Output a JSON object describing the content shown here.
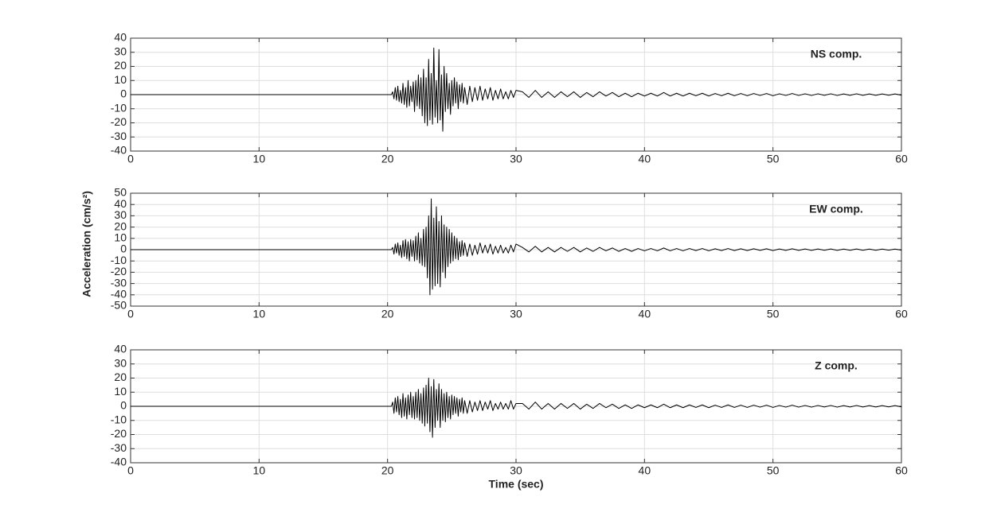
{
  "chart_data": [
    {
      "type": "line",
      "annotation": "NS comp.",
      "color": "#000000",
      "grid": true,
      "xlim": [
        0,
        60
      ],
      "xticks": [
        0,
        10,
        20,
        30,
        40,
        50,
        60
      ],
      "ylim": [
        -40,
        40
      ],
      "yticks": [
        -40,
        -30,
        -20,
        -10,
        0,
        10,
        20,
        30,
        40
      ],
      "x": [
        0,
        20.3,
        20.4,
        20.5,
        20.6,
        20.7,
        20.8,
        20.9,
        21,
        21.1,
        21.2,
        21.3,
        21.4,
        21.5,
        21.6,
        21.7,
        21.8,
        21.9,
        22,
        22.1,
        22.2,
        22.3,
        22.4,
        22.5,
        22.6,
        22.7,
        22.8,
        22.9,
        23,
        23.1,
        23.2,
        23.3,
        23.4,
        23.5,
        23.6,
        23.7,
        23.8,
        23.9,
        24,
        24.1,
        24.2,
        24.3,
        24.4,
        24.5,
        24.6,
        24.7,
        24.8,
        24.9,
        25,
        25.1,
        25.2,
        25.3,
        25.4,
        25.5,
        25.6,
        25.7,
        25.8,
        25.9,
        26,
        26.2,
        26.4,
        26.6,
        26.8,
        27,
        27.2,
        27.4,
        27.6,
        27.8,
        28,
        28.2,
        28.4,
        28.6,
        28.8,
        29,
        29.2,
        29.4,
        29.6,
        29.8,
        30,
        30.5,
        31,
        31.5,
        32,
        32.5,
        33,
        33.5,
        34,
        34.5,
        35,
        35.5,
        36,
        36.5,
        37,
        37.5,
        38,
        38.5,
        39,
        39.5,
        40,
        40.5,
        41,
        41.5,
        42,
        42.5,
        43,
        43.5,
        44,
        44.5,
        45,
        45.5,
        46,
        46.5,
        47,
        47.5,
        48,
        48.5,
        49,
        49.5,
        50,
        50.5,
        51,
        51.5,
        52,
        52.5,
        53,
        53.5,
        54,
        54.5,
        55,
        55.5,
        56,
        56.5,
        57,
        57.5,
        58,
        58.5,
        59,
        59.5,
        60
      ],
      "values": [
        0,
        0,
        2,
        -3,
        5,
        -4,
        6,
        -5,
        3,
        -6,
        8,
        -7,
        5,
        -9,
        10,
        -8,
        6,
        -5,
        9,
        -12,
        10,
        -8,
        14,
        -10,
        12,
        -15,
        18,
        -20,
        12,
        -22,
        25,
        -18,
        15,
        -21,
        33,
        -16,
        10,
        -20,
        32,
        -18,
        14,
        -26,
        20,
        -12,
        15,
        -10,
        8,
        -14,
        10,
        -8,
        12,
        -6,
        9,
        -10,
        7,
        -5,
        8,
        -6,
        5,
        -7,
        6,
        -5,
        5,
        -4,
        6,
        -4,
        4,
        -3,
        5,
        -4,
        3,
        -3,
        4,
        -3,
        2,
        -3,
        3,
        -2,
        3,
        2,
        -2,
        3,
        -2,
        2,
        -2,
        2,
        -1.5,
        2,
        -2,
        1.5,
        -1.5,
        2,
        -1,
        1.5,
        -1.5,
        1,
        -1.5,
        1,
        -1,
        1,
        -1,
        1.5,
        -1,
        1,
        -1,
        1,
        -0.8,
        1,
        -1,
        0.8,
        -0.8,
        1,
        -0.8,
        0.8,
        -0.8,
        0.8,
        -0.6,
        0.8,
        -0.8,
        0.6,
        -0.6,
        0.8,
        -0.6,
        0.6,
        -0.6,
        0.6,
        -0.5,
        0.6,
        -0.6,
        0.5,
        -0.5,
        0.6,
        -0.5,
        0.5,
        -0.5,
        0.5,
        -0.4,
        0.5,
        -0.4
      ]
    },
    {
      "type": "line",
      "annotation": "EW comp.",
      "color": "#000000",
      "grid": true,
      "ylabel": "Acceleration (cm/s²)",
      "xlim": [
        0,
        60
      ],
      "xticks": [
        0,
        10,
        20,
        30,
        40,
        50,
        60
      ],
      "ylim": [
        -50,
        50
      ],
      "yticks": [
        -50,
        -40,
        -30,
        -20,
        -10,
        0,
        10,
        20,
        30,
        40,
        50
      ],
      "x": [
        0,
        20.3,
        20.4,
        20.5,
        20.6,
        20.7,
        20.8,
        20.9,
        21,
        21.1,
        21.2,
        21.3,
        21.4,
        21.5,
        21.6,
        21.7,
        21.8,
        21.9,
        22,
        22.1,
        22.2,
        22.3,
        22.4,
        22.5,
        22.6,
        22.7,
        22.8,
        22.9,
        23,
        23.1,
        23.2,
        23.3,
        23.4,
        23.5,
        23.6,
        23.7,
        23.8,
        23.9,
        24,
        24.1,
        24.2,
        24.3,
        24.4,
        24.5,
        24.6,
        24.7,
        24.8,
        24.9,
        25,
        25.1,
        25.2,
        25.3,
        25.4,
        25.5,
        25.6,
        25.7,
        25.8,
        25.9,
        26,
        26.2,
        26.4,
        26.6,
        26.8,
        27,
        27.2,
        27.4,
        27.6,
        27.8,
        28,
        28.2,
        28.4,
        28.6,
        28.8,
        29,
        29.2,
        29.4,
        29.6,
        29.8,
        30,
        30.5,
        31,
        31.5,
        32,
        32.5,
        33,
        33.5,
        34,
        34.5,
        35,
        35.5,
        36,
        36.5,
        37,
        37.5,
        38,
        38.5,
        39,
        39.5,
        40,
        40.5,
        41,
        41.5,
        42,
        42.5,
        43,
        43.5,
        44,
        44.5,
        45,
        45.5,
        46,
        46.5,
        47,
        47.5,
        48,
        48.5,
        49,
        49.5,
        50,
        50.5,
        51,
        51.5,
        52,
        52.5,
        53,
        53.5,
        54,
        54.5,
        55,
        55.5,
        56,
        56.5,
        57,
        57.5,
        58,
        58.5,
        59,
        59.5,
        60
      ],
      "values": [
        0,
        0,
        2,
        -4,
        5,
        -3,
        6,
        -5,
        4,
        -7,
        8,
        -6,
        9,
        -8,
        7,
        -10,
        9,
        -6,
        8,
        -10,
        12,
        -9,
        15,
        -12,
        10,
        -14,
        18,
        -15,
        20,
        -25,
        30,
        -40,
        45,
        -35,
        28,
        -32,
        38,
        -30,
        25,
        -33,
        30,
        -20,
        22,
        -25,
        20,
        -15,
        18,
        -12,
        15,
        -10,
        12,
        -8,
        10,
        -9,
        7,
        -6,
        8,
        -5,
        6,
        -6,
        5,
        -5,
        4,
        -4,
        6,
        -3,
        4,
        -3,
        5,
        -4,
        3,
        -3,
        4,
        -3,
        2,
        -3,
        4,
        -2,
        5,
        2,
        -2,
        3,
        -2,
        2,
        -2,
        2,
        -1.5,
        2,
        -2,
        1.5,
        -1.5,
        2,
        -1,
        1.5,
        -1.5,
        1,
        -1.5,
        1,
        -1,
        1,
        -1,
        1.5,
        -1,
        1,
        -1,
        1,
        -0.8,
        1,
        -1,
        0.8,
        -0.8,
        1,
        -0.8,
        0.8,
        -0.8,
        0.8,
        -0.6,
        0.8,
        -0.8,
        0.6,
        -0.6,
        0.8,
        -0.6,
        0.6,
        -0.6,
        0.6,
        -0.5,
        0.6,
        -0.6,
        0.5,
        -0.5,
        0.6,
        -0.5,
        0.5,
        -0.5,
        0.5,
        -0.4,
        0.5,
        -0.4
      ]
    },
    {
      "type": "line",
      "annotation": "Z comp.",
      "color": "#000000",
      "grid": true,
      "xlabel": "Time (sec)",
      "xlim": [
        0,
        60
      ],
      "xticks": [
        0,
        10,
        20,
        30,
        40,
        50,
        60
      ],
      "ylim": [
        -40,
        40
      ],
      "yticks": [
        -40,
        -30,
        -20,
        -10,
        0,
        10,
        20,
        30,
        40
      ],
      "x": [
        0,
        20.3,
        20.4,
        20.5,
        20.6,
        20.7,
        20.8,
        20.9,
        21,
        21.1,
        21.2,
        21.3,
        21.4,
        21.5,
        21.6,
        21.7,
        21.8,
        21.9,
        22,
        22.1,
        22.2,
        22.3,
        22.4,
        22.5,
        22.6,
        22.7,
        22.8,
        22.9,
        23,
        23.1,
        23.2,
        23.3,
        23.4,
        23.5,
        23.6,
        23.7,
        23.8,
        23.9,
        24,
        24.1,
        24.2,
        24.3,
        24.4,
        24.5,
        24.6,
        24.7,
        24.8,
        24.9,
        25,
        25.1,
        25.2,
        25.3,
        25.4,
        25.5,
        25.6,
        25.7,
        25.8,
        25.9,
        26,
        26.2,
        26.4,
        26.6,
        26.8,
        27,
        27.2,
        27.4,
        27.6,
        27.8,
        28,
        28.2,
        28.4,
        28.6,
        28.8,
        29,
        29.2,
        29.4,
        29.6,
        29.8,
        30,
        30.5,
        31,
        31.5,
        32,
        32.5,
        33,
        33.5,
        34,
        34.5,
        35,
        35.5,
        36,
        36.5,
        37,
        37.5,
        38,
        38.5,
        39,
        39.5,
        40,
        40.5,
        41,
        41.5,
        42,
        42.5,
        43,
        43.5,
        44,
        44.5,
        45,
        45.5,
        46,
        46.5,
        47,
        47.5,
        48,
        48.5,
        49,
        49.5,
        50,
        50.5,
        51,
        51.5,
        52,
        52.5,
        53,
        53.5,
        54,
        54.5,
        55,
        55.5,
        56,
        56.5,
        57,
        57.5,
        58,
        58.5,
        59,
        59.5,
        60
      ],
      "values": [
        0,
        0,
        3,
        -5,
        6,
        -4,
        7,
        -6,
        5,
        -8,
        9,
        -7,
        6,
        -9,
        8,
        -6,
        10,
        -8,
        7,
        -9,
        10,
        -8,
        12,
        -10,
        9,
        -12,
        13,
        -14,
        15,
        -12,
        20,
        -18,
        14,
        -22,
        19,
        -15,
        12,
        -10,
        16,
        -15,
        12,
        -10,
        9,
        -11,
        10,
        -8,
        7,
        -9,
        8,
        -6,
        7,
        -5,
        6,
        -7,
        5,
        -4,
        6,
        -5,
        4,
        -5,
        4,
        -4,
        3,
        -3,
        4,
        -3,
        3,
        -2,
        4,
        -3,
        2,
        -2,
        3,
        -2,
        2,
        -2,
        4,
        -2,
        2,
        2,
        -2,
        3,
        -2,
        2,
        -2,
        2,
        -1.5,
        2,
        -2,
        1.5,
        -1.5,
        2,
        -1,
        1.5,
        -1.5,
        1,
        -1.5,
        1,
        -1,
        1,
        -1,
        1.5,
        -1,
        1,
        -1,
        1,
        -0.8,
        1,
        -1,
        0.8,
        -0.8,
        1,
        -0.8,
        0.8,
        -0.8,
        0.8,
        -0.6,
        0.8,
        -0.8,
        0.6,
        -0.6,
        0.8,
        -0.6,
        0.6,
        -0.6,
        0.6,
        -0.5,
        0.6,
        -0.6,
        0.5,
        -0.5,
        0.6,
        -0.5,
        0.5,
        -0.5,
        0.5,
        -0.4,
        0.5,
        -0.4
      ]
    }
  ]
}
